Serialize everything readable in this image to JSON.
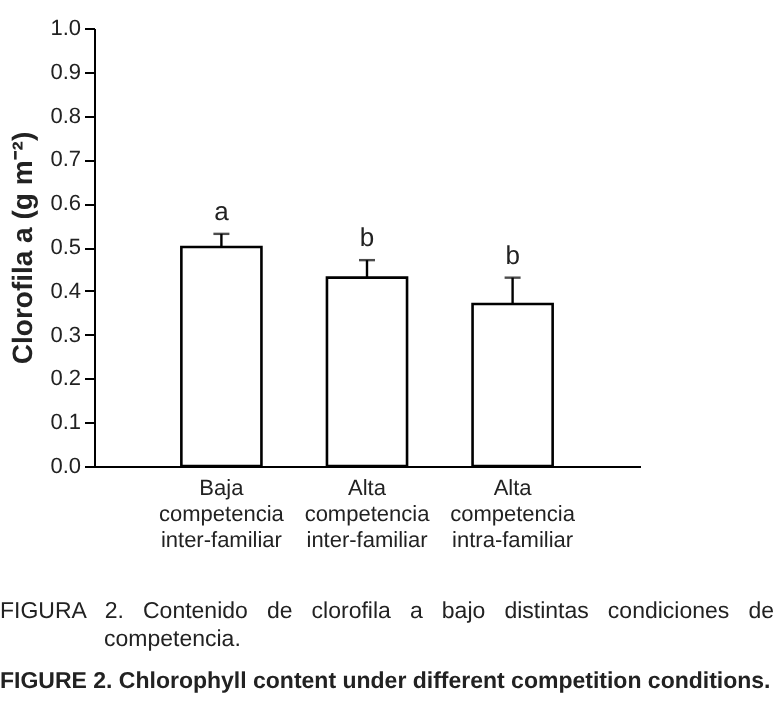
{
  "chart_data": {
    "type": "bar",
    "ylabel": "Clorofila a (g m⁻²)",
    "categories": [
      "Baja competencia inter-familiar",
      "Alta competencia inter-familiar",
      "Alta competencia intra-familiar"
    ],
    "values": [
      0.5,
      0.43,
      0.37
    ],
    "errors": [
      0.03,
      0.04,
      0.06
    ],
    "color": "#ffffff",
    "ylim": [
      0,
      1
    ],
    "yticks": [
      {
        "value": 0,
        "label": "0.0"
      },
      0.1,
      0.2,
      0.3,
      0.4,
      0.5,
      0.6,
      0.7,
      0.8,
      0.9,
      {
        "value": 1,
        "label": "1.0"
      }
    ],
    "grid": false,
    "annotations": [
      {
        "text": "a",
        "x": "Baja competencia inter-familiar",
        "y": 0.53
      },
      {
        "text": "b",
        "x": "Alta competencia inter-familiar",
        "y": 0.47
      },
      {
        "text": "b",
        "x": "Alta competencia intra-familiar",
        "y": 0.43
      },
      "FIGURA 2. Contenido de clorofila a bajo distintas condiciones de competencia.",
      "FIGURE 2. Chlorophyll content under different competition conditions."
    ]
  }
}
